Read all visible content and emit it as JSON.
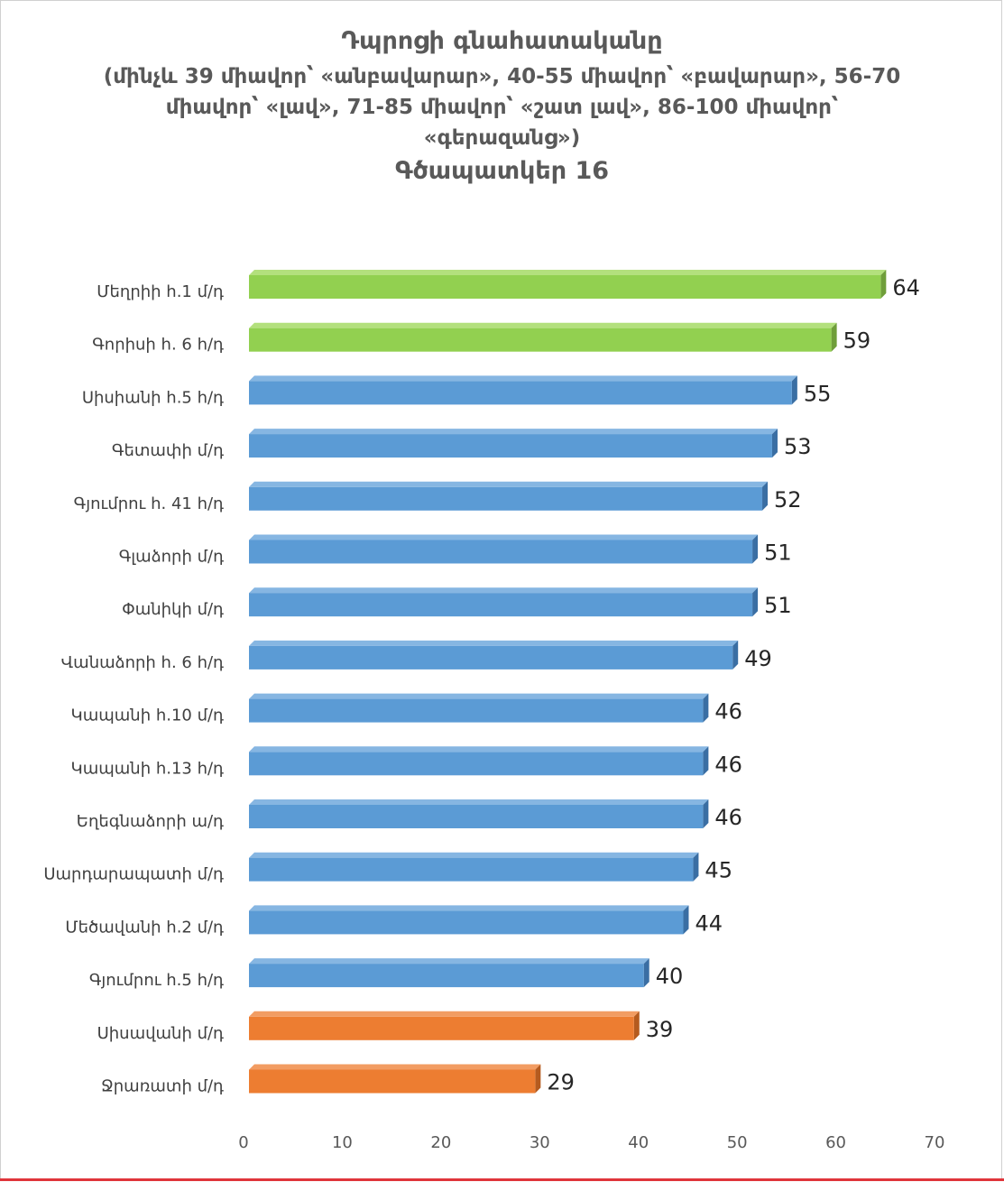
{
  "chart_data": {
    "type": "bar",
    "orientation": "horizontal",
    "title": "Դպրոցի գնահատականը",
    "subtitle": "(մինչև 39 միավոր՝ «անբավարար», 40-55 միավոր՝ «բավարար», 56-70 միավոր՝ «լավ», 71-85 միավոր՝ «շատ լավ», 86-100 միավոր՝ «գերազանց»)",
    "figure_label": "Գծապատկեր 16",
    "xlabel": "",
    "ylabel": "",
    "xlim": [
      0,
      70
    ],
    "ticks": [
      "0",
      "10",
      "20",
      "30",
      "40",
      "50",
      "60",
      "70"
    ],
    "grid": false,
    "categories": [
      "Մեղրիի հ.1 մ/դ",
      "Գորիսի հ. 6 հ/դ",
      "Սիսիանի հ.5 հ/դ",
      "Գետափի մ/դ",
      "Գյումրու հ. 41 հ/դ",
      "Գլաձորի մ/դ",
      "Փանիկի մ/դ",
      "Վանաձորի հ. 6 հ/դ",
      "Կապանի հ.10 մ/դ",
      "Կապանի հ.13 հ/դ",
      "Եղեգնաձորի ա/դ",
      "Սարդարապատի մ/դ",
      "Մեծավանի  հ.2 մ/դ",
      "Գյումրու հ.5 հ/դ",
      "Սիսավանի մ/դ",
      "Ջրառատի մ/դ"
    ],
    "values": [
      64,
      59,
      55,
      53,
      52,
      51,
      51,
      49,
      46,
      46,
      46,
      45,
      44,
      40,
      39,
      29
    ],
    "bar_groups": [
      "good",
      "good",
      "sat",
      "sat",
      "sat",
      "sat",
      "sat",
      "sat",
      "sat",
      "sat",
      "sat",
      "sat",
      "sat",
      "sat",
      "unsat",
      "unsat"
    ],
    "colors": {
      "good": {
        "front": "#92d050",
        "top": "#b3e07d",
        "side": "#6f9e3a"
      },
      "sat": {
        "front": "#5b9bd5",
        "top": "#86b6e2",
        "side": "#3a6ea3"
      },
      "unsat": {
        "front": "#ed7d31",
        "top": "#f29c62",
        "side": "#b55b1f"
      }
    }
  }
}
